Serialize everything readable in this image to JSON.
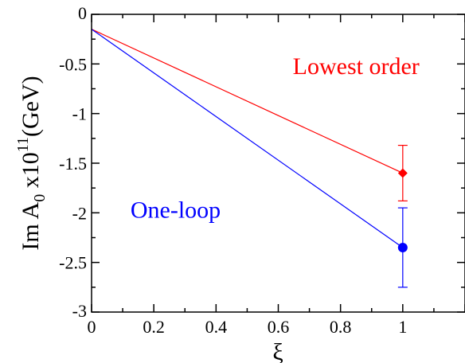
{
  "chart_data": {
    "type": "line",
    "xlabel": "ξ",
    "ylabel": {
      "prefix": "Im A",
      "subscript": "0",
      "middle": " x10",
      "superscript": "11",
      "suffix": "(GeV)"
    },
    "xlim": [
      0,
      1.2
    ],
    "ylim": [
      -3,
      0
    ],
    "x_ticks": [
      {
        "value": 0,
        "label": "0"
      },
      {
        "value": 0.2,
        "label": "0.2"
      },
      {
        "value": 0.4,
        "label": "0.4"
      },
      {
        "value": 0.6,
        "label": "0.6"
      },
      {
        "value": 0.8,
        "label": "0.8"
      },
      {
        "value": 1,
        "label": "1"
      }
    ],
    "y_ticks": [
      {
        "value": 0,
        "label": "0"
      },
      {
        "value": -0.5,
        "label": "-0.5"
      },
      {
        "value": -1,
        "label": "-1"
      },
      {
        "value": -1.5,
        "label": "-1.5"
      },
      {
        "value": -2,
        "label": "-2"
      },
      {
        "value": -2.5,
        "label": "-2.5"
      },
      {
        "value": -3,
        "label": "-3"
      }
    ],
    "series": [
      {
        "name": "Lowest order",
        "color": "#ff0000",
        "marker": "diamond",
        "line": [
          [
            0,
            -0.15
          ],
          [
            1,
            -1.6
          ]
        ],
        "point": {
          "x": 1,
          "y": -1.6,
          "err_low": -1.88,
          "err_high": -1.32
        },
        "label_pos": {
          "x": 0.85,
          "y": -0.6
        }
      },
      {
        "name": "One-loop",
        "color": "#0000ff",
        "marker": "circle",
        "line": [
          [
            0,
            -0.15
          ],
          [
            1,
            -2.35
          ]
        ],
        "point": {
          "x": 1,
          "y": -2.35,
          "err_low": -2.75,
          "err_high": -1.95
        },
        "label_pos": {
          "x": 0.27,
          "y": -2.05
        }
      }
    ],
    "grid": false
  }
}
